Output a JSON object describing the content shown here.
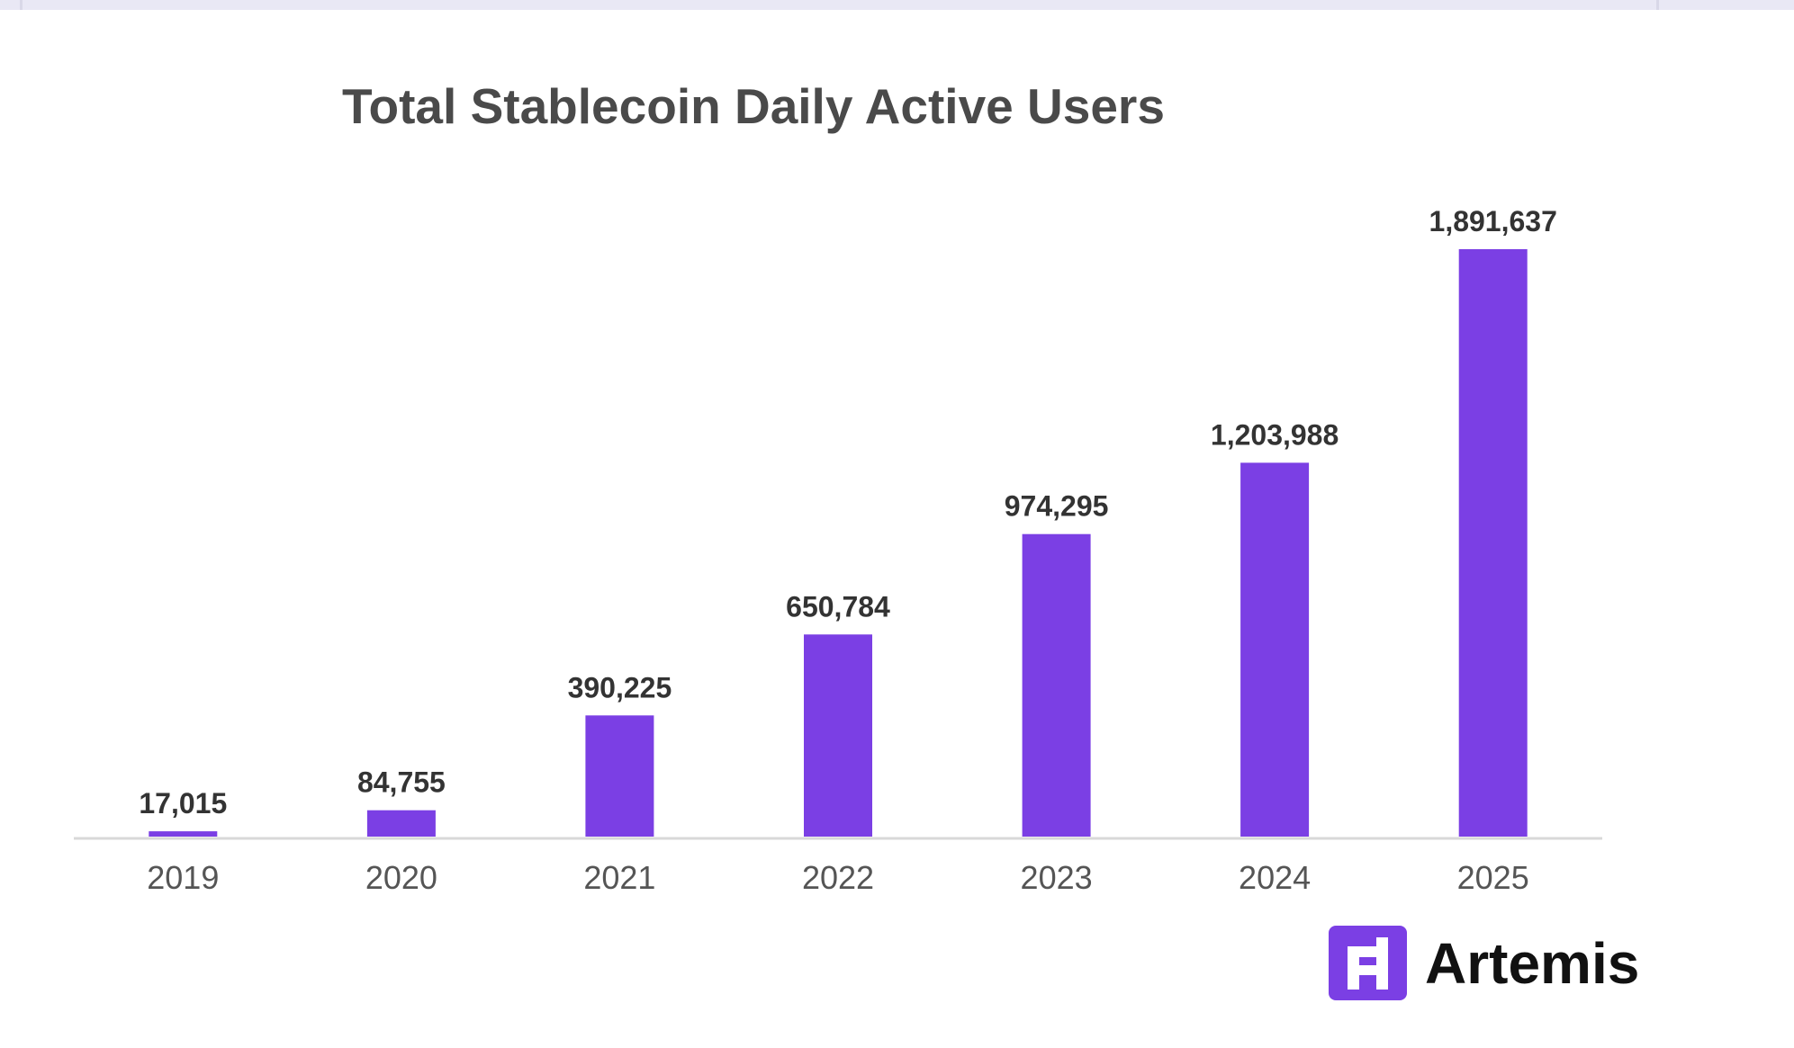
{
  "chart_data": {
    "type": "bar",
    "title": "Total Stablecoin Daily Active Users",
    "xlabel": "",
    "ylabel": "",
    "categories": [
      "2019",
      "2020",
      "2021",
      "2022",
      "2023",
      "2024",
      "2025"
    ],
    "values": [
      17015,
      84755,
      390225,
      650784,
      974295,
      1203988,
      1891637
    ],
    "value_labels": [
      "17,015",
      "84,755",
      "390,225",
      "650,784",
      "974,295",
      "1,203,988",
      "1,891,637"
    ],
    "ylim": [
      0,
      1891637
    ],
    "grid": false,
    "bar_color": "#7b3fe4"
  },
  "brand": {
    "name": "Artemis",
    "logo_icon": "artemis-logo-icon",
    "logo_color": "#7b3fe4"
  }
}
